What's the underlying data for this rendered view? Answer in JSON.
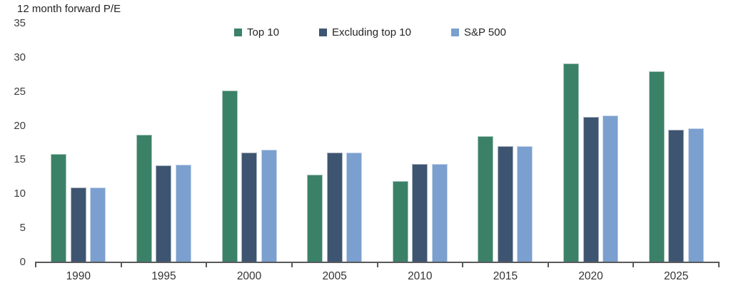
{
  "chart": {
    "title": "12 month forward P/E"
  },
  "chart_data": {
    "type": "bar",
    "title": "12 month forward P/E",
    "categories": [
      "1990",
      "1995",
      "2000",
      "2005",
      "2010",
      "2015",
      "2020",
      "2025"
    ],
    "series": [
      {
        "name": "Top 10",
        "color": "#3a8168",
        "values": [
          15.9,
          18.7,
          25.2,
          12.8,
          11.9,
          18.5,
          29.2,
          28.0
        ]
      },
      {
        "name": "Excluding top 10",
        "color": "#3e5571",
        "values": [
          11.0,
          14.2,
          16.1,
          16.1,
          14.4,
          17.0,
          21.3,
          19.4
        ]
      },
      {
        "name": "S&P 500",
        "color": "#7ba0cf",
        "values": [
          11.0,
          14.3,
          16.5,
          16.1,
          14.4,
          17.0,
          21.5,
          19.6
        ]
      }
    ],
    "ylabel": "12 month forward P/E",
    "xlabel": "",
    "ylim": [
      0,
      35
    ],
    "yticks": [
      0,
      5,
      10,
      15,
      20,
      25,
      30,
      35
    ],
    "grid": false,
    "legend_position": "top",
    "axis_color": "#58595b",
    "text_color": "#333333"
  }
}
